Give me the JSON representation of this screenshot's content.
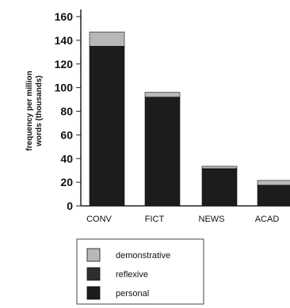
{
  "chart_data": {
    "type": "bar",
    "stacked": true,
    "ylabel_line1": "frequency per million",
    "ylabel_line2": "words (thousands)",
    "ylim": [
      0,
      160
    ],
    "yticks": [
      0,
      20,
      40,
      60,
      80,
      100,
      120,
      140,
      160
    ],
    "categories": [
      "CONV",
      "FICT",
      "NEWS",
      "ACAD"
    ],
    "series": [
      {
        "name": "personal",
        "values": [
          134,
          91,
          31,
          17
        ],
        "color": "#1c1c1c"
      },
      {
        "name": "reflexive",
        "values": [
          1,
          1,
          0.5,
          0.5
        ],
        "color": "#2e2e2e"
      },
      {
        "name": "demonstrative",
        "values": [
          12,
          4,
          2,
          4
        ],
        "color": "#b8b8b8"
      }
    ],
    "legend_order": [
      "demonstrative",
      "reflexive",
      "personal"
    ],
    "legend_position": "bottom"
  }
}
